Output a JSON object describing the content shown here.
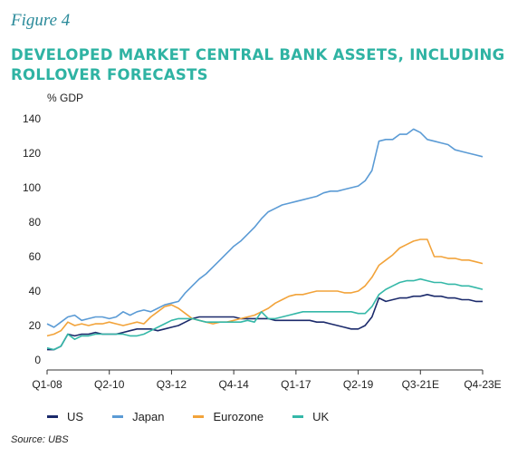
{
  "figure_label": "Figure 4",
  "title": "DEVELOPED MARKET CENTRAL BANK ASSETS, INCLUDING ROLLOVER FORECASTS",
  "source": "Source: UBS",
  "chart_data": {
    "type": "line",
    "ylabel": "% GDP",
    "ylim": [
      0,
      140
    ],
    "yticks": [
      0,
      20,
      40,
      60,
      80,
      100,
      120,
      140
    ],
    "xlim": [
      0,
      63
    ],
    "xticks": [
      {
        "label": "Q1-08",
        "i": 0
      },
      {
        "label": "Q2-10",
        "i": 9
      },
      {
        "label": "Q3-12",
        "i": 18
      },
      {
        "label": "Q4-14",
        "i": 27
      },
      {
        "label": "Q1-17",
        "i": 36
      },
      {
        "label": "Q2-19",
        "i": 45
      },
      {
        "label": "Q3-21E",
        "i": 54
      },
      {
        "label": "Q4-23E",
        "i": 63
      }
    ],
    "grid": false,
    "legend_position": "bottom",
    "series": [
      {
        "name": "US",
        "color": "#1b2a6b",
        "points": [
          [
            0,
            6
          ],
          [
            1,
            6
          ],
          [
            2,
            8
          ],
          [
            3,
            15
          ],
          [
            4,
            14
          ],
          [
            5,
            15
          ],
          [
            6,
            15
          ],
          [
            7,
            16
          ],
          [
            8,
            15
          ],
          [
            9,
            15
          ],
          [
            10,
            15
          ],
          [
            11,
            16
          ],
          [
            12,
            17
          ],
          [
            13,
            18
          ],
          [
            14,
            18
          ],
          [
            15,
            18
          ],
          [
            16,
            17
          ],
          [
            17,
            18
          ],
          [
            18,
            19
          ],
          [
            19,
            20
          ],
          [
            20,
            22
          ],
          [
            21,
            24
          ],
          [
            22,
            25
          ],
          [
            23,
            25
          ],
          [
            24,
            25
          ],
          [
            25,
            25
          ],
          [
            26,
            25
          ],
          [
            27,
            25
          ],
          [
            28,
            24
          ],
          [
            29,
            24
          ],
          [
            30,
            24
          ],
          [
            31,
            24
          ],
          [
            32,
            24
          ],
          [
            33,
            23
          ],
          [
            34,
            23
          ],
          [
            35,
            23
          ],
          [
            36,
            23
          ],
          [
            37,
            23
          ],
          [
            38,
            23
          ],
          [
            39,
            22
          ],
          [
            40,
            22
          ],
          [
            41,
            21
          ],
          [
            42,
            20
          ],
          [
            43,
            19
          ],
          [
            44,
            18
          ],
          [
            45,
            18
          ],
          [
            46,
            20
          ],
          [
            47,
            25
          ],
          [
            48,
            36
          ],
          [
            49,
            34
          ],
          [
            50,
            35
          ],
          [
            51,
            36
          ],
          [
            52,
            36
          ],
          [
            53,
            37
          ],
          [
            54,
            37
          ],
          [
            55,
            38
          ],
          [
            56,
            37
          ],
          [
            57,
            37
          ],
          [
            58,
            36
          ],
          [
            59,
            36
          ],
          [
            60,
            35
          ],
          [
            61,
            35
          ],
          [
            62,
            34
          ],
          [
            63,
            34
          ]
        ]
      },
      {
        "name": "Japan",
        "color": "#5b9bd5",
        "points": [
          [
            0,
            21
          ],
          [
            1,
            19
          ],
          [
            2,
            22
          ],
          [
            3,
            25
          ],
          [
            4,
            26
          ],
          [
            5,
            23
          ],
          [
            6,
            24
          ],
          [
            7,
            25
          ],
          [
            8,
            25
          ],
          [
            9,
            24
          ],
          [
            10,
            25
          ],
          [
            11,
            28
          ],
          [
            12,
            26
          ],
          [
            13,
            28
          ],
          [
            14,
            29
          ],
          [
            15,
            28
          ],
          [
            16,
            30
          ],
          [
            17,
            32
          ],
          [
            18,
            33
          ],
          [
            19,
            34
          ],
          [
            20,
            39
          ],
          [
            21,
            43
          ],
          [
            22,
            47
          ],
          [
            23,
            50
          ],
          [
            24,
            54
          ],
          [
            25,
            58
          ],
          [
            26,
            62
          ],
          [
            27,
            66
          ],
          [
            28,
            69
          ],
          [
            29,
            73
          ],
          [
            30,
            77
          ],
          [
            31,
            82
          ],
          [
            32,
            86
          ],
          [
            33,
            88
          ],
          [
            34,
            90
          ],
          [
            35,
            91
          ],
          [
            36,
            92
          ],
          [
            37,
            93
          ],
          [
            38,
            94
          ],
          [
            39,
            95
          ],
          [
            40,
            97
          ],
          [
            41,
            98
          ],
          [
            42,
            98
          ],
          [
            43,
            99
          ],
          [
            44,
            100
          ],
          [
            45,
            101
          ],
          [
            46,
            104
          ],
          [
            47,
            110
          ],
          [
            48,
            127
          ],
          [
            49,
            128
          ],
          [
            50,
            128
          ],
          [
            51,
            131
          ],
          [
            52,
            131
          ],
          [
            53,
            134
          ],
          [
            54,
            132
          ],
          [
            55,
            128
          ],
          [
            56,
            127
          ],
          [
            57,
            126
          ],
          [
            58,
            125
          ],
          [
            59,
            122
          ],
          [
            60,
            121
          ],
          [
            61,
            120
          ],
          [
            62,
            119
          ],
          [
            63,
            118
          ]
        ]
      },
      {
        "name": "Eurozone",
        "color": "#f2a33a",
        "points": [
          [
            0,
            14
          ],
          [
            1,
            15
          ],
          [
            2,
            17
          ],
          [
            3,
            22
          ],
          [
            4,
            20
          ],
          [
            5,
            21
          ],
          [
            6,
            20
          ],
          [
            7,
            21
          ],
          [
            8,
            21
          ],
          [
            9,
            22
          ],
          [
            10,
            21
          ],
          [
            11,
            20
          ],
          [
            12,
            21
          ],
          [
            13,
            22
          ],
          [
            14,
            21
          ],
          [
            15,
            25
          ],
          [
            16,
            28
          ],
          [
            17,
            31
          ],
          [
            18,
            32
          ],
          [
            19,
            30
          ],
          [
            20,
            27
          ],
          [
            21,
            24
          ],
          [
            22,
            23
          ],
          [
            23,
            22
          ],
          [
            24,
            21
          ],
          [
            25,
            22
          ],
          [
            26,
            22
          ],
          [
            27,
            23
          ],
          [
            28,
            24
          ],
          [
            29,
            25
          ],
          [
            30,
            26
          ],
          [
            31,
            28
          ],
          [
            32,
            30
          ],
          [
            33,
            33
          ],
          [
            34,
            35
          ],
          [
            35,
            37
          ],
          [
            36,
            38
          ],
          [
            37,
            38
          ],
          [
            38,
            39
          ],
          [
            39,
            40
          ],
          [
            40,
            40
          ],
          [
            41,
            40
          ],
          [
            42,
            40
          ],
          [
            43,
            39
          ],
          [
            44,
            39
          ],
          [
            45,
            40
          ],
          [
            46,
            43
          ],
          [
            47,
            48
          ],
          [
            48,
            55
          ],
          [
            49,
            58
          ],
          [
            50,
            61
          ],
          [
            51,
            65
          ],
          [
            52,
            67
          ],
          [
            53,
            69
          ],
          [
            54,
            70
          ],
          [
            55,
            70
          ],
          [
            56,
            60
          ],
          [
            57,
            60
          ],
          [
            58,
            59
          ],
          [
            59,
            59
          ],
          [
            60,
            58
          ],
          [
            61,
            58
          ],
          [
            62,
            57
          ],
          [
            63,
            56
          ]
        ]
      },
      {
        "name": "UK",
        "color": "#35b8a8",
        "points": [
          [
            0,
            7
          ],
          [
            1,
            6
          ],
          [
            2,
            8
          ],
          [
            3,
            15
          ],
          [
            4,
            12
          ],
          [
            5,
            14
          ],
          [
            6,
            14
          ],
          [
            7,
            15
          ],
          [
            8,
            15
          ],
          [
            9,
            15
          ],
          [
            10,
            15
          ],
          [
            11,
            15
          ],
          [
            12,
            14
          ],
          [
            13,
            14
          ],
          [
            14,
            15
          ],
          [
            15,
            17
          ],
          [
            16,
            19
          ],
          [
            17,
            21
          ],
          [
            18,
            23
          ],
          [
            19,
            24
          ],
          [
            20,
            24
          ],
          [
            21,
            24
          ],
          [
            22,
            23
          ],
          [
            23,
            22
          ],
          [
            24,
            22
          ],
          [
            25,
            22
          ],
          [
            26,
            22
          ],
          [
            27,
            22
          ],
          [
            28,
            22
          ],
          [
            29,
            23
          ],
          [
            30,
            22
          ],
          [
            31,
            28
          ],
          [
            32,
            24
          ],
          [
            33,
            24
          ],
          [
            34,
            25
          ],
          [
            35,
            26
          ],
          [
            36,
            27
          ],
          [
            37,
            28
          ],
          [
            38,
            28
          ],
          [
            39,
            28
          ],
          [
            40,
            28
          ],
          [
            41,
            28
          ],
          [
            42,
            28
          ],
          [
            43,
            28
          ],
          [
            44,
            28
          ],
          [
            45,
            27
          ],
          [
            46,
            27
          ],
          [
            47,
            31
          ],
          [
            48,
            38
          ],
          [
            49,
            41
          ],
          [
            50,
            43
          ],
          [
            51,
            45
          ],
          [
            52,
            46
          ],
          [
            53,
            46
          ],
          [
            54,
            47
          ],
          [
            55,
            46
          ],
          [
            56,
            45
          ],
          [
            57,
            45
          ],
          [
            58,
            44
          ],
          [
            59,
            44
          ],
          [
            60,
            43
          ],
          [
            61,
            43
          ],
          [
            62,
            42
          ],
          [
            63,
            41
          ]
        ]
      }
    ]
  }
}
